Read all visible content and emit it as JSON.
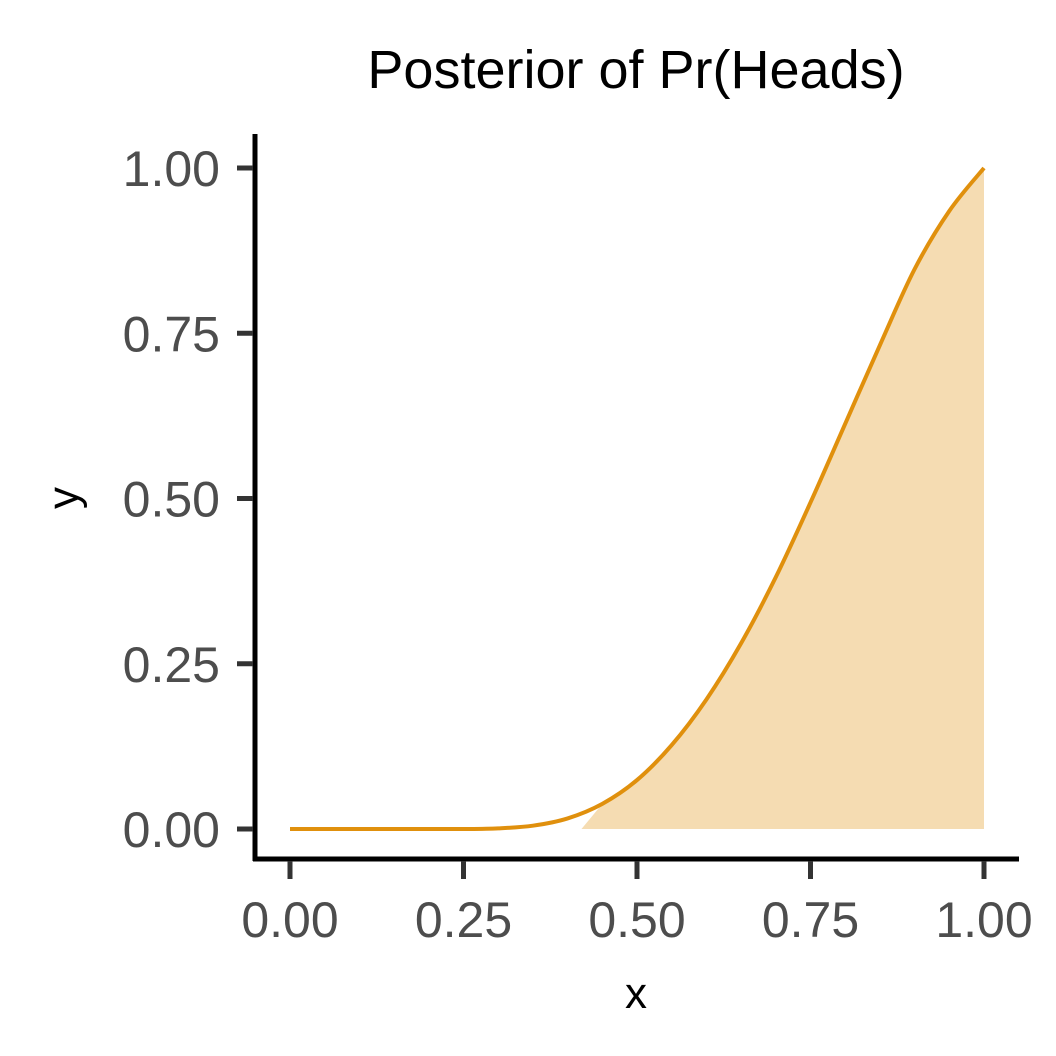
{
  "chart_data": {
    "type": "area",
    "title": "Posterior of Pr(Heads)",
    "xlabel": "x",
    "ylabel": "y",
    "xlim": [
      0,
      1
    ],
    "ylim": [
      0,
      1
    ],
    "x_ticks": [
      "0.00",
      "0.25",
      "0.50",
      "0.75",
      "1.00"
    ],
    "y_ticks": [
      "0.00",
      "0.25",
      "0.50",
      "0.75",
      "1.00"
    ],
    "grid": false,
    "legend": "none",
    "series": [
      {
        "x": [
          0.0,
          0.05,
          0.1,
          0.15,
          0.2,
          0.25,
          0.3,
          0.35,
          0.4,
          0.45,
          0.5,
          0.55,
          0.6,
          0.65,
          0.7,
          0.75,
          0.8,
          0.85,
          0.9,
          0.95,
          1.0
        ],
        "y": [
          0.0,
          0.0,
          0.0,
          0.0,
          0.0,
          0.0,
          0.001,
          0.005,
          0.016,
          0.038,
          0.074,
          0.127,
          0.196,
          0.281,
          0.381,
          0.494,
          0.613,
          0.732,
          0.847,
          0.935,
          1.0
        ]
      }
    ],
    "shaded_from_x": 0.42
  },
  "colors": {
    "line": "#e0900d",
    "fill": "#f5dcb2"
  }
}
